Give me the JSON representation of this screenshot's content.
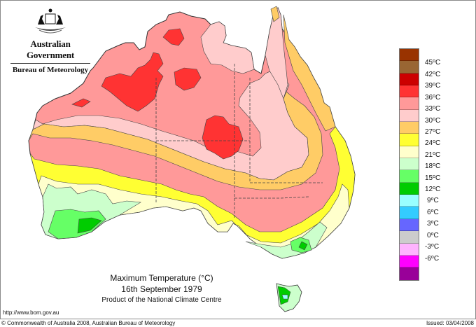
{
  "header": {
    "government": "Australian Government",
    "agency": "Bureau of Meteorology",
    "crest_icon": "coat-of-arms-icon"
  },
  "map": {
    "title": "Maximum Temperature (°C)",
    "date": "16th September 1979",
    "product": "Product of the National Climate Centre",
    "region": "Australia"
  },
  "legend": {
    "cells": [
      {
        "color": "#993300"
      },
      {
        "color": "#996633"
      },
      {
        "color": "#cc0000"
      },
      {
        "color": "#ff3333"
      },
      {
        "color": "#ff9999"
      },
      {
        "color": "#ffcccc"
      },
      {
        "color": "#ffcc66"
      },
      {
        "color": "#ffff33"
      },
      {
        "color": "#ffffcc"
      },
      {
        "color": "#ccffcc"
      },
      {
        "color": "#66ff66"
      },
      {
        "color": "#00cc00"
      },
      {
        "color": "#99ffff"
      },
      {
        "color": "#33ccff"
      },
      {
        "color": "#6666ff"
      },
      {
        "color": "#cccccc"
      },
      {
        "color": "#ffb3ff"
      },
      {
        "color": "#ff00ff"
      },
      {
        "color": "#990099"
      }
    ],
    "labels": [
      "45",
      "42",
      "39",
      "36",
      "33",
      "30",
      "27",
      "24",
      "21",
      "18",
      "15",
      "12",
      "9",
      "6",
      "3",
      "0",
      "-3",
      "-6"
    ],
    "unit": "C"
  },
  "footer": {
    "url": "http://www.bom.gov.au",
    "copyright": "© Commonwealth of Australia 2008, Australian Bureau of Meteorology",
    "issued": "Issued: 03/04/2008"
  }
}
